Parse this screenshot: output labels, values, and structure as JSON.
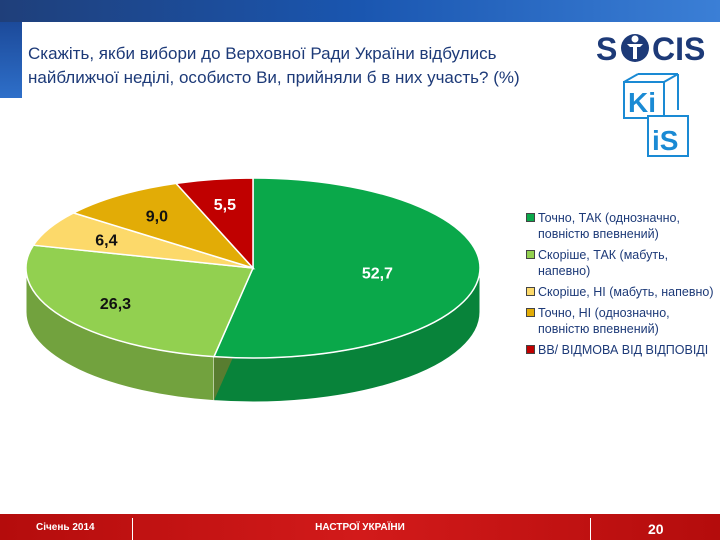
{
  "title": "Скажіть, якби вибори до Верховної Ради України відбулись найближчої неділі, особисто Ви, прийняли б в них участь? (%)",
  "logos": {
    "socis": "SOCIS",
    "kiis": "KIIS"
  },
  "chart_data": {
    "type": "pie",
    "title": "Скажіть, якби вибори до Верховної Ради України відбулись найближчої неділі, особисто Ви, прийняли б в них участь? (%)",
    "legend_position": "right",
    "series": [
      {
        "label": "Точно, ТАК (однозначно, повністю впевнений)",
        "value": 52.7,
        "display": "52,7",
        "color": "#0aa84a",
        "label_color": "#ffffff"
      },
      {
        "label": "Скоріше, ТАК (мабуть, напевно)",
        "value": 26.3,
        "display": "26,3",
        "color": "#92d050",
        "label_color": "#111111"
      },
      {
        "label": "Скоріше, НІ (мабуть, напевно)",
        "value": 6.4,
        "display": "6,4",
        "color": "#fcd96a",
        "label_color": "#111111"
      },
      {
        "label": "Точно, НІ (однозначно, повністю впевнений)",
        "value": 9.0,
        "display": "9,0",
        "color": "#e2ac06",
        "label_color": "#111111"
      },
      {
        "label": "ВВ/ ВІДМОВА ВІД ВІДПОВІДІ",
        "value": 5.5,
        "display": "5,5",
        "color": "#c00000",
        "label_color": "#ffffff"
      }
    ],
    "legend": [
      {
        "label": "Точно, ТАК (однозначно, повністю впевнений)",
        "color": "#0aa84a"
      },
      {
        "label": "Скоріше, ТАК (мабуть, напевно)",
        "color": "#92d050"
      },
      {
        "label": "Скоріше, НІ (мабуть, напевно)",
        "color": "#fcd96a"
      },
      {
        "label": "Точно, НІ (однозначно, повністю впевнений)",
        "color": "#e2ac06"
      },
      {
        "label": "ВВ/ ВІДМОВА ВІД ВІДПОВІДІ",
        "color": "#c00000"
      }
    ]
  },
  "footer": {
    "left": "Січень 2014",
    "center": "НАСТРОЇ УКРАЇНИ",
    "page": "20"
  }
}
